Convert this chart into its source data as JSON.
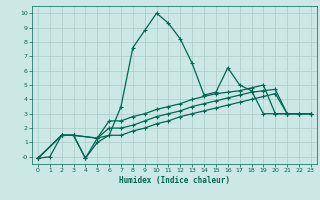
{
  "xlabel": "Humidex (Indice chaleur)",
  "bg_color": "#cce8e4",
  "grid_color": "#aaccca",
  "line_color": "#006655",
  "xlim": [
    0,
    23
  ],
  "ylim": [
    -0.5,
    10.5
  ],
  "xticks": [
    0,
    1,
    2,
    3,
    4,
    5,
    6,
    7,
    8,
    9,
    10,
    11,
    12,
    13,
    14,
    15,
    16,
    17,
    18,
    19,
    20,
    21,
    22,
    23
  ],
  "yticks": [
    0,
    1,
    2,
    3,
    4,
    5,
    6,
    7,
    8,
    9,
    10
  ],
  "line1_x": [
    0,
    1,
    2,
    3,
    4,
    5,
    6,
    7,
    8,
    9,
    10,
    11,
    12,
    13,
    14,
    15,
    16,
    17,
    18,
    19,
    20,
    21,
    22,
    23
  ],
  "line1_y": [
    -0.1,
    0.0,
    1.5,
    1.5,
    -0.1,
    1.0,
    1.5,
    3.5,
    7.6,
    8.8,
    10.0,
    9.3,
    8.2,
    6.5,
    4.3,
    4.5,
    6.2,
    5.0,
    4.6,
    3.0,
    3.0,
    3.0,
    3.0,
    3.0
  ],
  "line2_x": [
    0,
    2,
    3,
    4,
    5,
    6,
    7,
    8,
    9,
    10,
    11,
    12,
    13,
    14,
    15,
    16,
    17,
    18,
    19,
    20,
    21,
    22,
    23
  ],
  "line2_y": [
    -0.1,
    1.5,
    1.5,
    -0.1,
    1.3,
    2.5,
    2.5,
    2.8,
    3.0,
    3.3,
    3.5,
    3.7,
    4.0,
    4.2,
    4.4,
    4.5,
    4.6,
    4.8,
    5.0,
    3.0,
    3.0,
    3.0,
    3.0
  ],
  "line3_x": [
    0,
    2,
    3,
    5,
    6,
    7,
    8,
    9,
    10,
    11,
    12,
    13,
    14,
    15,
    16,
    17,
    18,
    19,
    20,
    21,
    22,
    23
  ],
  "line3_y": [
    -0.1,
    1.5,
    1.5,
    1.3,
    2.0,
    2.0,
    2.2,
    2.5,
    2.8,
    3.0,
    3.2,
    3.5,
    3.7,
    3.9,
    4.1,
    4.3,
    4.5,
    4.6,
    4.7,
    3.0,
    3.0,
    3.0
  ],
  "line4_x": [
    0,
    2,
    3,
    5,
    6,
    7,
    8,
    9,
    10,
    11,
    12,
    13,
    14,
    15,
    16,
    17,
    18,
    19,
    20,
    21,
    22,
    23
  ],
  "line4_y": [
    -0.1,
    1.5,
    1.5,
    1.3,
    1.5,
    1.5,
    1.8,
    2.0,
    2.3,
    2.5,
    2.8,
    3.0,
    3.2,
    3.4,
    3.6,
    3.8,
    4.0,
    4.2,
    4.4,
    3.0,
    3.0,
    3.0
  ]
}
